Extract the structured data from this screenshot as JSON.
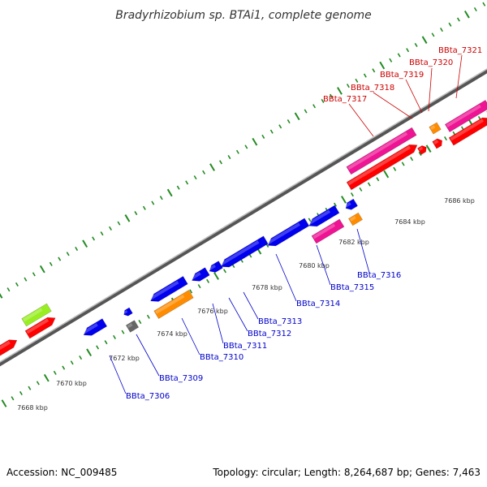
{
  "title": "Bradyrhizobium sp. BTAi1, complete genome",
  "footer": {
    "accession": "Accession: NC_009485",
    "topology": "Topology: circular; Length: 8,264,687 bp; Genes: 7,463"
  },
  "colors": {
    "backbone": "#888888",
    "tick": "#228B22",
    "label_reverse": "#0000CC",
    "label_forward": "#CC0000",
    "leader": "#0000CC",
    "leader_forward": "#CC0000"
  },
  "tick_labels": [
    "7668 kbp",
    "7670 kbp",
    "7672 kbp",
    "7674 kbp",
    "7676 kbp",
    "7678 kbp",
    "7680 kbp",
    "7682 kbp",
    "7684 kbp",
    "7686 kbp"
  ],
  "genes_reverse": [
    {
      "label": "BBta_7306",
      "color": "#0000EE"
    },
    {
      "label": "BBta_7309",
      "color": "#666666"
    },
    {
      "label": "BBta_7310",
      "color": "#FF8C00"
    },
    {
      "label": "BBta_7311",
      "color": "#0000EE"
    },
    {
      "label": "BBta_7312",
      "color": "#0000EE"
    },
    {
      "label": "BBta_7313",
      "color": "#0000EE"
    },
    {
      "label": "BBta_7314",
      "color": "#0000EE"
    },
    {
      "label": "BBta_7315",
      "color": "#EE1493"
    },
    {
      "label": "BBta_7316",
      "color": "#FF8C00"
    }
  ],
  "genes_forward": [
    {
      "label": "BBta_7317",
      "color": "#EE1493"
    },
    {
      "label": "BBta_7318",
      "color": "#FF0000"
    },
    {
      "label": "BBta_7319",
      "color": "#FF0000"
    },
    {
      "label": "BBta_7320",
      "color": "#FF8C00"
    },
    {
      "label": "BBta_7321",
      "color": "#EE1493"
    }
  ]
}
